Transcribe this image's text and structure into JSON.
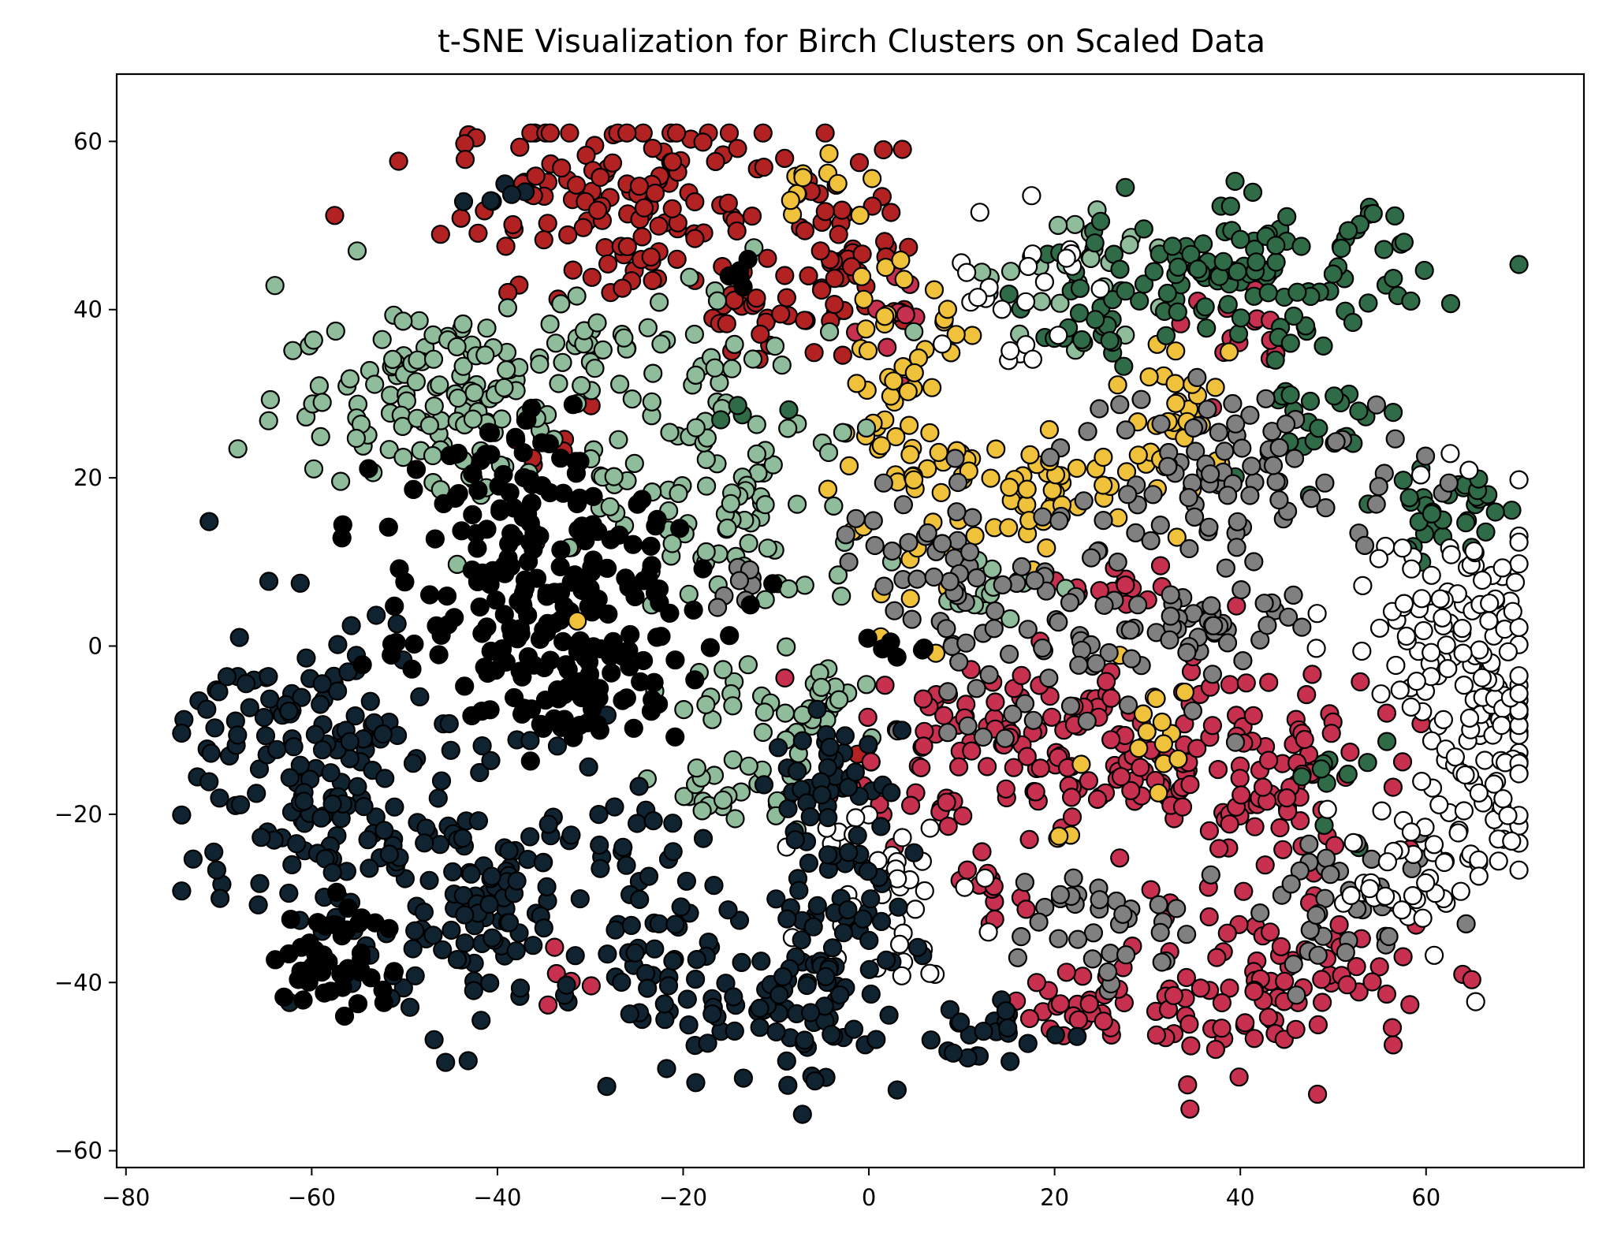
{
  "chart_data": {
    "type": "scatter",
    "title": "t-SNE Visualization for Birch Clusters on Scaled Data",
    "xlabel": "",
    "ylabel": "",
    "xlim": [
      -81,
      77
    ],
    "ylim": [
      -62,
      68
    ],
    "xticks": [
      -80,
      -60,
      -40,
      -20,
      0,
      20,
      40,
      60
    ],
    "yticks": [
      -60,
      -40,
      -20,
      0,
      20,
      40,
      60
    ],
    "xtick_labels": [
      "−80",
      "−60",
      "−40",
      "−20",
      "0",
      "20",
      "40",
      "60"
    ],
    "ytick_labels": [
      "−60",
      "−40",
      "−20",
      "0",
      "20",
      "40",
      "60"
    ],
    "grid": false,
    "legend": "none",
    "marker_edge_color": "#000000",
    "series": [
      {
        "color": "#b22222",
        "regions": [
          {
            "cx": -25,
            "cy": 52,
            "sx": 10,
            "sy": 6,
            "n": 140
          },
          {
            "cx": -2,
            "cy": 47,
            "sx": 4,
            "sy": 6,
            "n": 50
          },
          {
            "cx": -12,
            "cy": 40,
            "sx": 3,
            "sy": 3,
            "n": 18
          },
          {
            "cx": -34,
            "cy": 25,
            "sx": 2,
            "sy": 3,
            "n": 8
          },
          {
            "cx": -0.5,
            "cy": -13,
            "sx": 0.6,
            "sy": 0.6,
            "n": 2
          },
          {
            "cx": -36,
            "cy": 12,
            "sx": 2,
            "sy": 1,
            "n": 3
          }
        ]
      },
      {
        "color": "#c8304f",
        "regions": [
          {
            "cx": 10,
            "cy": -12,
            "sx": 7,
            "sy": 5,
            "n": 80
          },
          {
            "cx": 27,
            "cy": -13,
            "sx": 7,
            "sy": 5,
            "n": 70
          },
          {
            "cx": 42,
            "cy": -16,
            "sx": 6,
            "sy": 7,
            "n": 90
          },
          {
            "cx": 44,
            "cy": -40,
            "sx": 8,
            "sy": 5,
            "n": 90
          },
          {
            "cx": 25,
            "cy": -43,
            "sx": 5,
            "sy": 2,
            "n": 30
          },
          {
            "cx": 27,
            "cy": 7,
            "sx": 3,
            "sy": 2,
            "n": 18
          },
          {
            "cx": 40,
            "cy": 36,
            "sx": 3,
            "sy": 3,
            "n": 14
          },
          {
            "cx": 2,
            "cy": 38,
            "sx": 2,
            "sy": 3,
            "n": 10
          },
          {
            "cx": 13,
            "cy": -30,
            "sx": 3,
            "sy": 3,
            "n": 15
          },
          {
            "cx": -33,
            "cy": -40,
            "sx": 1.5,
            "sy": 1.5,
            "n": 5
          }
        ]
      },
      {
        "color": "#f0c23c",
        "regions": [
          {
            "cx": 3,
            "cy": 25,
            "sx": 4,
            "sy": 10,
            "n": 70
          },
          {
            "cx": 20,
            "cy": 19,
            "sx": 7,
            "sy": 3,
            "n": 55
          },
          {
            "cx": 34,
            "cy": 28,
            "sx": 3,
            "sy": 4,
            "n": 25
          },
          {
            "cx": -6,
            "cy": 55,
            "sx": 3,
            "sy": 2,
            "n": 10
          },
          {
            "cx": 30,
            "cy": -7,
            "sx": 3,
            "sy": 4,
            "n": 14
          }
        ]
      },
      {
        "color": "#8fbc9a",
        "regions": [
          {
            "cx": -45,
            "cy": 30,
            "sx": 9,
            "sy": 6,
            "n": 140
          },
          {
            "cx": -15,
            "cy": 20,
            "sx": 8,
            "sy": 10,
            "n": 110
          },
          {
            "cx": -8,
            "cy": -8,
            "sx": 5,
            "sy": 3,
            "n": 40
          },
          {
            "cx": -15,
            "cy": -17,
            "sx": 4,
            "sy": 2,
            "n": 25
          },
          {
            "cx": 13,
            "cy": 7,
            "sx": 3,
            "sy": 2,
            "n": 15
          },
          {
            "cx": 22,
            "cy": 45,
            "sx": 6,
            "sy": 4,
            "n": 25
          },
          {
            "cx": -27,
            "cy": 36,
            "sx": 4,
            "sy": 3,
            "n": 20
          }
        ]
      },
      {
        "color": "#2e6b46",
        "regions": [
          {
            "cx": 42,
            "cy": 44,
            "sx": 9,
            "sy": 4,
            "n": 110
          },
          {
            "cx": 24,
            "cy": 38,
            "sx": 3,
            "sy": 5,
            "n": 30
          },
          {
            "cx": 63,
            "cy": 16,
            "sx": 4,
            "sy": 3,
            "n": 35
          },
          {
            "cx": 48,
            "cy": 27,
            "sx": 4,
            "sy": 4,
            "n": 25
          },
          {
            "cx": 50,
            "cy": -17,
            "sx": 3,
            "sy": 4,
            "n": 10
          },
          {
            "cx": -14,
            "cy": 28,
            "sx": 1.5,
            "sy": 1,
            "n": 4
          }
        ]
      },
      {
        "color": "#808080",
        "regions": [
          {
            "cx": 18,
            "cy": 1,
            "sx": 9,
            "sy": 6,
            "n": 80
          },
          {
            "cx": 40,
            "cy": 21,
            "sx": 10,
            "sy": 5,
            "n": 90
          },
          {
            "cx": 38,
            "cy": 4,
            "sx": 4,
            "sy": 3,
            "n": 35
          },
          {
            "cx": 25,
            "cy": -33,
            "sx": 5,
            "sy": 4,
            "n": 35
          },
          {
            "cx": 52,
            "cy": -32,
            "sx": 5,
            "sy": 4,
            "n": 40
          },
          {
            "cx": 6,
            "cy": 12,
            "sx": 4,
            "sy": 3,
            "n": 20
          },
          {
            "cx": -14,
            "cy": 7,
            "sx": 1.5,
            "sy": 2,
            "n": 8
          }
        ]
      },
      {
        "color": "#ffffff",
        "regions": [
          {
            "cx": 65,
            "cy": -8,
            "sx": 5,
            "sy": 12,
            "n": 160
          },
          {
            "cx": 60,
            "cy": 3,
            "sx": 5,
            "sy": 5,
            "n": 30
          },
          {
            "cx": 2,
            "cy": -27,
            "sx": 4,
            "sy": 6,
            "n": 40
          },
          {
            "cx": 15,
            "cy": 44,
            "sx": 4,
            "sy": 6,
            "n": 25
          },
          {
            "cx": 56,
            "cy": -28,
            "sx": 4,
            "sy": 4,
            "n": 20
          }
        ]
      },
      {
        "color": "#102330",
        "regions": [
          {
            "cx": -60,
            "cy": -15,
            "sx": 7,
            "sy": 10,
            "n": 160
          },
          {
            "cx": -40,
            "cy": -30,
            "sx": 8,
            "sy": 8,
            "n": 150
          },
          {
            "cx": -22,
            "cy": -38,
            "sx": 4,
            "sy": 6,
            "n": 45
          },
          {
            "cx": -6,
            "cy": -40,
            "sx": 5,
            "sy": 7,
            "n": 90
          },
          {
            "cx": -4,
            "cy": -20,
            "sx": 4,
            "sy": 7,
            "n": 60
          },
          {
            "cx": 12,
            "cy": -46,
            "sx": 4,
            "sy": 2,
            "n": 25
          },
          {
            "cx": -40,
            "cy": 53,
            "sx": 2,
            "sy": 1,
            "n": 6
          }
        ]
      },
      {
        "color": "#000000",
        "regions": [
          {
            "cx": -35,
            "cy": 5,
            "sx": 9,
            "sy": 7,
            "n": 170
          },
          {
            "cx": -40,
            "cy": 20,
            "sx": 4,
            "sy": 4,
            "n": 40
          },
          {
            "cx": -57,
            "cy": -37,
            "sx": 3,
            "sy": 4,
            "n": 45
          },
          {
            "cx": -32,
            "cy": -6,
            "sx": 5,
            "sy": 3,
            "n": 35
          },
          {
            "cx": -13,
            "cy": 44,
            "sx": 1.5,
            "sy": 1.5,
            "n": 5
          },
          {
            "cx": 3,
            "cy": 0,
            "sx": 2,
            "sy": 0.6,
            "n": 6
          }
        ]
      },
      {
        "color": "#f0c23c",
        "regions": [
          {
            "cx": -32,
            "cy": 3,
            "sx": 0.5,
            "sy": 0.5,
            "n": 1
          },
          {
            "cx": 20,
            "cy": -23,
            "sx": 1,
            "sy": 1,
            "n": 3
          }
        ]
      }
    ]
  }
}
